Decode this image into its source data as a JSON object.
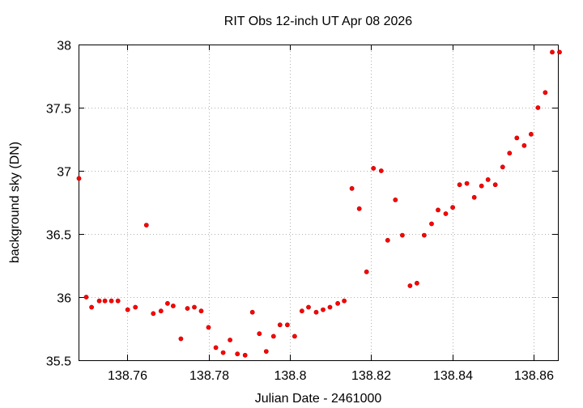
{
  "chart_data": {
    "type": "scatter",
    "title": "RIT Obs 12-inch UT Apr 08 2026",
    "xlabel": "Julian Date - 2461000",
    "ylabel": "background sky (DN)",
    "xlim": [
      138.748,
      138.866
    ],
    "ylim": [
      35.5,
      38.0
    ],
    "grid": true,
    "marker_color": "#ff0000",
    "x_ticks": [
      {
        "value": 138.76,
        "label": "138.76"
      },
      {
        "value": 138.78,
        "label": "138.78"
      },
      {
        "value": 138.8,
        "label": "138.8"
      },
      {
        "value": 138.82,
        "label": "138.82"
      },
      {
        "value": 138.84,
        "label": "138.84"
      },
      {
        "value": 138.86,
        "label": "138.86"
      }
    ],
    "y_ticks": [
      {
        "value": 35.5,
        "label": "35.5"
      },
      {
        "value": 36.0,
        "label": "36"
      },
      {
        "value": 36.5,
        "label": "36.5"
      },
      {
        "value": 37.0,
        "label": "37"
      },
      {
        "value": 37.5,
        "label": "37.5"
      },
      {
        "value": 38.0,
        "label": "38"
      }
    ],
    "points": [
      [
        138.7481,
        36.94
      ],
      [
        138.7499,
        36.0
      ],
      [
        138.7512,
        35.92
      ],
      [
        138.7531,
        35.97
      ],
      [
        138.7545,
        35.97
      ],
      [
        138.7561,
        35.97
      ],
      [
        138.7577,
        35.97
      ],
      [
        138.7601,
        35.9
      ],
      [
        138.762,
        35.92
      ],
      [
        138.7647,
        36.57
      ],
      [
        138.7664,
        35.87
      ],
      [
        138.7683,
        35.89
      ],
      [
        138.7699,
        35.95
      ],
      [
        138.7713,
        35.93
      ],
      [
        138.7732,
        35.67
      ],
      [
        138.7748,
        35.91
      ],
      [
        138.7765,
        35.92
      ],
      [
        138.7782,
        35.89
      ],
      [
        138.78,
        35.76
      ],
      [
        138.7818,
        35.6
      ],
      [
        138.7836,
        35.56
      ],
      [
        138.7853,
        35.66
      ],
      [
        138.7871,
        35.55
      ],
      [
        138.789,
        35.54
      ],
      [
        138.7908,
        35.88
      ],
      [
        138.7925,
        35.71
      ],
      [
        138.7942,
        35.57
      ],
      [
        138.796,
        35.69
      ],
      [
        138.7976,
        35.78
      ],
      [
        138.7994,
        35.78
      ],
      [
        138.8012,
        35.69
      ],
      [
        138.803,
        35.89
      ],
      [
        138.8046,
        35.92
      ],
      [
        138.8065,
        35.88
      ],
      [
        138.8082,
        35.9
      ],
      [
        138.8099,
        35.92
      ],
      [
        138.8118,
        35.95
      ],
      [
        138.8134,
        35.97
      ],
      [
        138.8153,
        36.86
      ],
      [
        138.8171,
        36.7
      ],
      [
        138.8189,
        36.2
      ],
      [
        138.8206,
        37.02
      ],
      [
        138.8225,
        37.0
      ],
      [
        138.8241,
        36.45
      ],
      [
        138.826,
        36.77
      ],
      [
        138.8277,
        36.49
      ],
      [
        138.8296,
        36.09
      ],
      [
        138.8313,
        36.11
      ],
      [
        138.8331,
        36.49
      ],
      [
        138.8349,
        36.58
      ],
      [
        138.8365,
        36.69
      ],
      [
        138.8384,
        36.66
      ],
      [
        138.8401,
        36.71
      ],
      [
        138.8418,
        36.89
      ],
      [
        138.8436,
        36.9
      ],
      [
        138.8454,
        36.79
      ],
      [
        138.8472,
        36.88
      ],
      [
        138.8488,
        36.93
      ],
      [
        138.8506,
        36.89
      ],
      [
        138.8524,
        37.03
      ],
      [
        138.8541,
        37.14
      ],
      [
        138.8559,
        37.26
      ],
      [
        138.8577,
        37.2
      ],
      [
        138.8594,
        37.29
      ],
      [
        138.8611,
        37.5
      ],
      [
        138.8629,
        37.62
      ],
      [
        138.8646,
        37.94
      ],
      [
        138.8664,
        37.94
      ]
    ]
  }
}
